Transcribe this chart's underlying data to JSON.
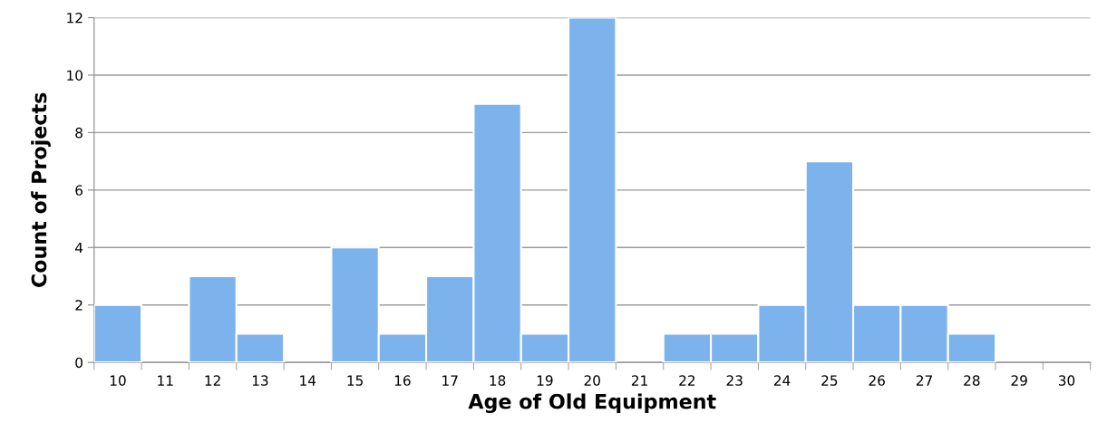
{
  "chart_data": {
    "type": "bar",
    "xlabel": "Age of Old Equipment",
    "ylabel": "Count of Projects",
    "categories": [
      "10",
      "11",
      "12",
      "13",
      "14",
      "15",
      "16",
      "17",
      "18",
      "19",
      "20",
      "21",
      "22",
      "23",
      "24",
      "25",
      "26",
      "27",
      "28",
      "29",
      "30"
    ],
    "values": [
      2,
      0,
      3,
      1,
      0,
      4,
      1,
      3,
      9,
      1,
      12,
      0,
      1,
      1,
      2,
      7,
      2,
      2,
      1,
      0,
      0
    ],
    "color": "#7db3ec",
    "ylim": [
      0,
      12
    ],
    "yticks": [
      0,
      2,
      4,
      6,
      8,
      10,
      12
    ],
    "grid": "y",
    "legend": false
  }
}
